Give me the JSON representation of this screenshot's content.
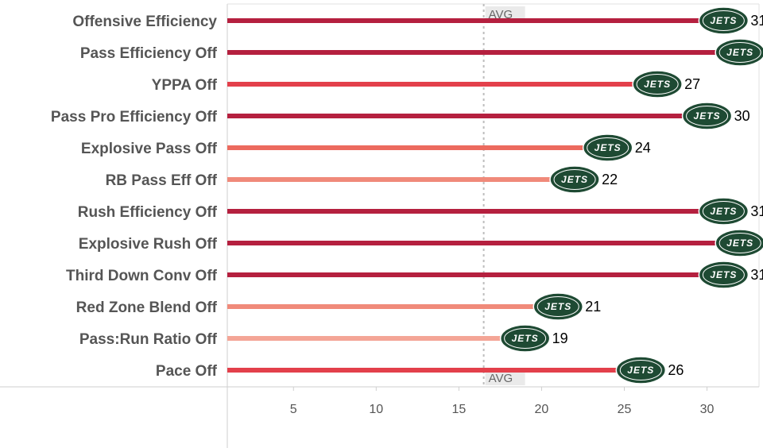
{
  "chart_data": {
    "type": "bar",
    "categories": [
      "Offensive Efficiency",
      "Pass Efficiency Off",
      "YPPA Off",
      "Pass Pro Efficiency Off",
      "Explosive Pass Off",
      "RB Pass Eff Off",
      "Rush Efficiency Off",
      "Explosive Rush Off",
      "Third Down Conv Off",
      "Red Zone Blend Off",
      "Pass:Run Ratio Off",
      "Pace Off"
    ],
    "values": [
      31,
      32,
      27,
      30,
      24,
      22,
      31,
      32,
      31,
      21,
      19,
      26
    ],
    "xlim": [
      1,
      33
    ],
    "xticks": [
      5,
      10,
      15,
      20,
      25,
      30
    ],
    "average": 16.5,
    "average_label": "AVG",
    "logo_text": "JETS",
    "colors": {
      "high": "#b5203f",
      "mid_high": "#e3404b",
      "mid": "#ec6a5e",
      "mid_low": "#f08a7a",
      "low": "#f4a596",
      "logo": "#1e4a33"
    },
    "legend": "none",
    "grid": false
  }
}
